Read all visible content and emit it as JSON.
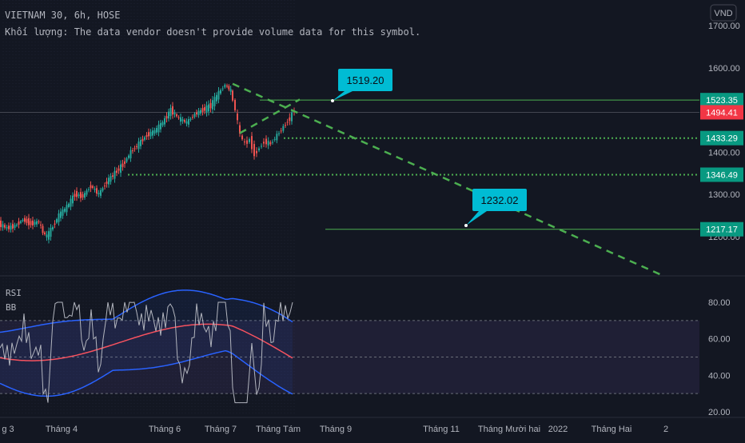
{
  "header": {
    "symbol_line": "VIETNAM 30, 6h, HOSE",
    "volume_line": "Khối lượng: The data vendor doesn't provide volume data for this symbol."
  },
  "price_axis": {
    "currency": "VND",
    "ticks": [
      {
        "label": "1700.00",
        "value": 1700
      },
      {
        "label": "1600.00",
        "value": 1600
      },
      {
        "label": "1400.00",
        "value": 1400
      },
      {
        "label": "1300.00",
        "value": 1300
      },
      {
        "label": "1200.00",
        "value": 1200
      }
    ]
  },
  "price_tags": [
    {
      "label": "1523.35",
      "value": 1523.35,
      "color": "#089981",
      "line": "solid-green"
    },
    {
      "label": "1494.41",
      "value": 1494.41,
      "color": "#f23645",
      "line": "solid-gray"
    },
    {
      "label": "1433.29",
      "value": 1433.29,
      "color": "#089981",
      "line": "dotted-green"
    },
    {
      "label": "1346.49",
      "value": 1346.49,
      "color": "#089981",
      "line": "dotted-green"
    },
    {
      "label": "1217.17",
      "value": 1217.17,
      "color": "#089981",
      "line": "solid-green"
    }
  ],
  "callouts": [
    {
      "label": "1519.20",
      "value": 1519.2
    },
    {
      "label": "1232.02",
      "value": 1232.02
    }
  ],
  "indicators": {
    "rsi_label": "RSI",
    "bb_label": "BB",
    "rsi_ticks": [
      {
        "label": "80.00",
        "value": 80
      },
      {
        "label": "60.00",
        "value": 60
      },
      {
        "label": "40.00",
        "value": 40
      },
      {
        "label": "20.00",
        "value": 20
      }
    ],
    "bands": [
      70,
      50,
      30
    ]
  },
  "time_axis": {
    "ticks": [
      {
        "label": "g 3"
      },
      {
        "label": "Tháng 4"
      },
      {
        "label": "Tháng 6"
      },
      {
        "label": "Tháng 7"
      },
      {
        "label": "Tháng Tám"
      },
      {
        "label": "Tháng 9"
      },
      {
        "label": "Tháng 11"
      },
      {
        "label": "Tháng Mười hai"
      },
      {
        "label": "2022"
      },
      {
        "label": "Tháng Hai"
      },
      {
        "label": "2"
      }
    ]
  },
  "colors": {
    "background": "#131722",
    "up_candle": "#26a69a",
    "down_candle": "#ef5350",
    "trend_dashed": "#4caf50",
    "level_line": "#089981",
    "callout": "#00bcd4",
    "rsi_line": "#b2b5be",
    "bb_basis": "#f7525f",
    "bb_bands": "#2962ff"
  },
  "chart_data": {
    "type": "candlestick",
    "symbol": "VIETNAM 30",
    "interval": "6h",
    "exchange": "HOSE",
    "price_range": [
      1130,
      1730
    ],
    "rsi_range": [
      17,
      88
    ],
    "approx_path": [
      [
        0,
        1230
      ],
      [
        10,
        1220
      ],
      [
        20,
        1225
      ],
      [
        30,
        1240
      ],
      [
        40,
        1230
      ],
      [
        50,
        1235
      ],
      [
        55,
        1210
      ],
      [
        60,
        1200
      ],
      [
        65,
        1215
      ],
      [
        75,
        1250
      ],
      [
        85,
        1270
      ],
      [
        95,
        1300
      ],
      [
        105,
        1295
      ],
      [
        115,
        1320
      ],
      [
        125,
        1300
      ],
      [
        135,
        1330
      ],
      [
        145,
        1350
      ],
      [
        155,
        1370
      ],
      [
        165,
        1400
      ],
      [
        175,
        1420
      ],
      [
        185,
        1440
      ],
      [
        195,
        1450
      ],
      [
        205,
        1470
      ],
      [
        215,
        1500
      ],
      [
        225,
        1480
      ],
      [
        235,
        1470
      ],
      [
        245,
        1490
      ],
      [
        255,
        1500
      ],
      [
        265,
        1510
      ],
      [
        275,
        1540
      ],
      [
        283,
        1560
      ],
      [
        290,
        1545
      ],
      [
        296,
        1500
      ],
      [
        302,
        1440
      ],
      [
        308,
        1420
      ],
      [
        314,
        1430
      ],
      [
        320,
        1395
      ],
      [
        326,
        1410
      ],
      [
        332,
        1425
      ],
      [
        340,
        1420
      ],
      [
        348,
        1440
      ],
      [
        356,
        1460
      ],
      [
        364,
        1480
      ],
      [
        370,
        1500
      ]
    ]
  }
}
